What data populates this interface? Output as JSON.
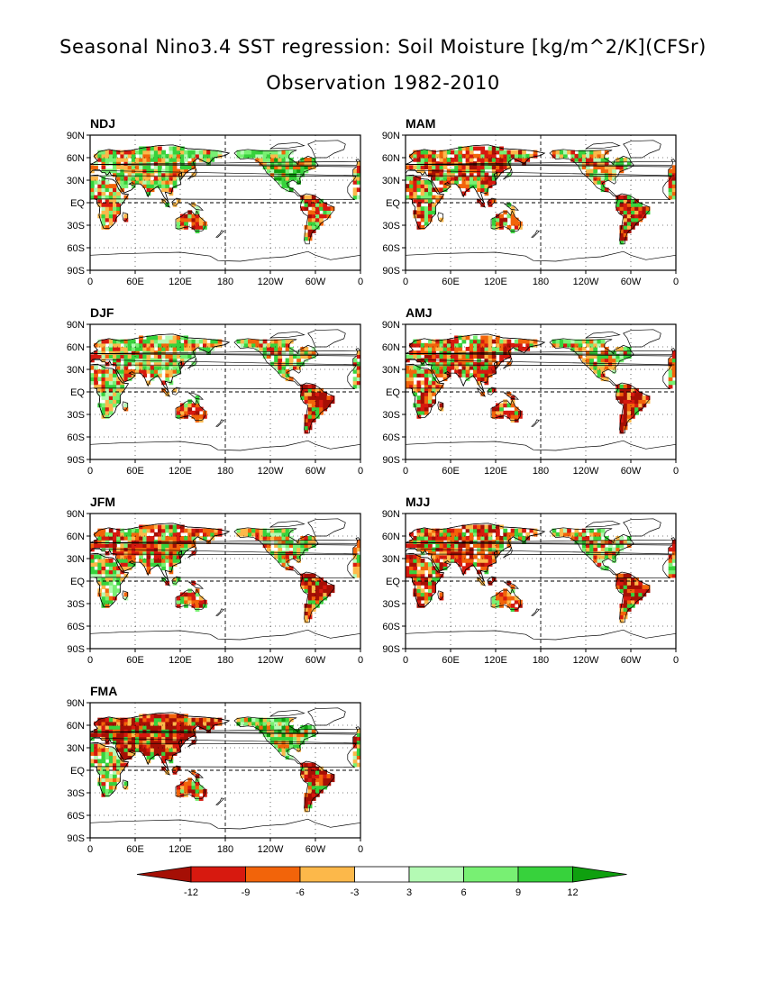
{
  "title_line1": "Seasonal Nino3.4 SST regression: Soil Moisture [kg/m^2/K](CFSr)",
  "title_line2": "Observation 1982-2010",
  "panels": [
    {
      "label": "NDJ",
      "pattern": {
        "north_amer": "green",
        "south_amer": "dry",
        "africa": "mixed",
        "eurasia": "mixed",
        "australia": "dry"
      }
    },
    {
      "label": "MAM",
      "pattern": {
        "north_amer": "mixed",
        "south_amer": "very-dry",
        "africa": "dry",
        "eurasia": "dry",
        "australia": "dry"
      }
    },
    {
      "label": "DJF",
      "pattern": {
        "north_amer": "mixed",
        "south_amer": "very-dry",
        "africa": "mixed",
        "eurasia": "mixed",
        "australia": "dry"
      }
    },
    {
      "label": "AMJ",
      "pattern": {
        "north_amer": "mixed",
        "south_amer": "very-dry",
        "africa": "dry",
        "eurasia": "dry",
        "australia": "dry"
      }
    },
    {
      "label": "JFM",
      "pattern": {
        "north_amer": "mixed",
        "south_amer": "very-dry",
        "africa": "mixed",
        "eurasia": "dry",
        "australia": "dry"
      }
    },
    {
      "label": "MJJ",
      "pattern": {
        "north_amer": "mixed",
        "south_amer": "very-dry",
        "africa": "dry",
        "eurasia": "dry",
        "australia": "dry"
      }
    },
    {
      "label": "FMA",
      "pattern": {
        "north_amer": "green",
        "south_amer": "very-dry",
        "africa": "mixed",
        "eurasia": "very-dry",
        "australia": "dry"
      }
    }
  ],
  "lat_ticks": [
    "90N",
    "60N",
    "30N",
    "EQ",
    "30S",
    "60S",
    "90S"
  ],
  "lon_ticks": [
    "0",
    "60E",
    "120E",
    "180",
    "120W",
    "60W",
    "0"
  ],
  "colorbar": {
    "colors": [
      "#a50f05",
      "#d7190f",
      "#f2640a",
      "#fcb84a",
      "#ffffff",
      "#b4fab4",
      "#78f073",
      "#37d23c",
      "#0fa00f"
    ],
    "tick_labels": [
      "-12",
      "-9",
      "-6",
      "-3",
      "3",
      "6",
      "9",
      "12"
    ]
  },
  "palette": {
    "very-dry": [
      "#a50f05",
      "#a50f05",
      "#d7190f",
      "#a50f05",
      "#f2640a",
      "#37d23c",
      "#fcb84a"
    ],
    "dry": [
      "#d7190f",
      "#f2640a",
      "#a50f05",
      "#fcb84a",
      "#f2640a",
      "#78f073",
      "#37d23c",
      "#d7190f",
      "#ffffff"
    ],
    "mixed": [
      "#f2640a",
      "#fcb84a",
      "#37d23c",
      "#78f073",
      "#d7190f",
      "#b4fab4",
      "#ffffff",
      "#fcb84a",
      "#37d23c"
    ],
    "green": [
      "#37d23c",
      "#78f073",
      "#b4fab4",
      "#0fa00f",
      "#fcb84a",
      "#f2640a",
      "#37d23c"
    ]
  }
}
